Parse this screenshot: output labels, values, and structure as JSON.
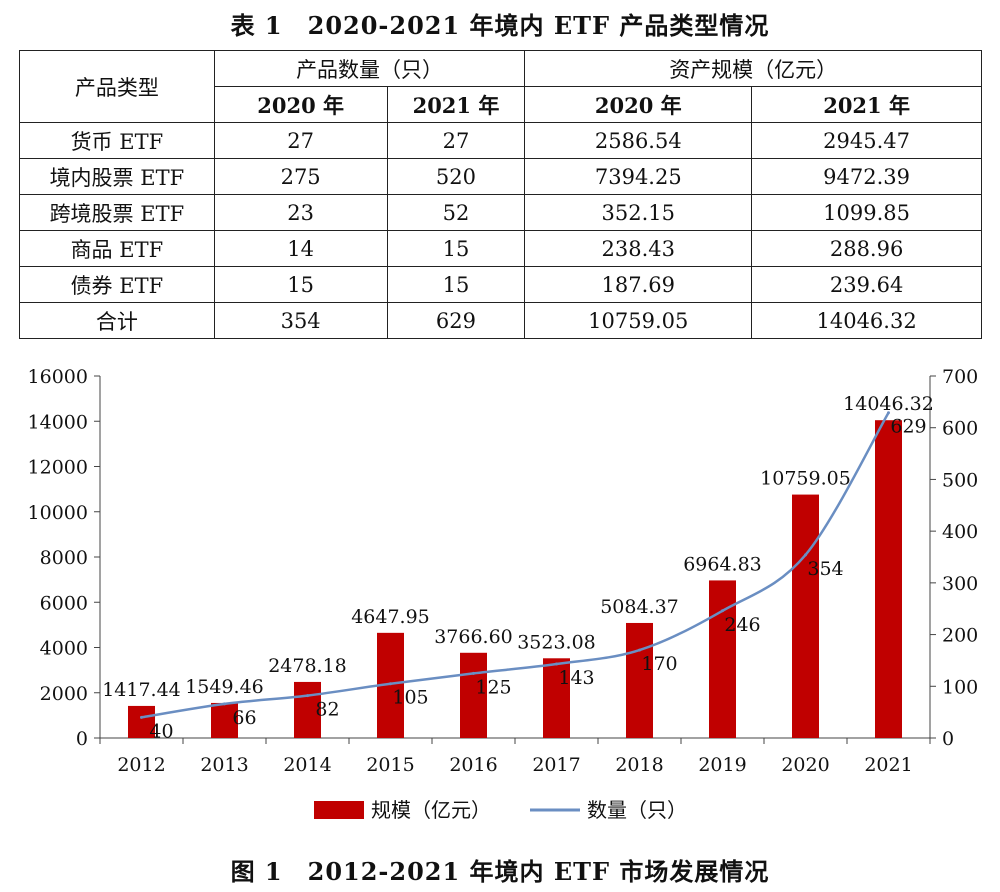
{
  "table": {
    "title": "表 1　2020-2021 年境内 ETF 产品类型情况",
    "col_type": "产品类型",
    "group_count": "产品数量（只）",
    "group_aum": "资产规模（亿元）",
    "years": [
      "2020 年",
      "2021 年",
      "2020 年",
      "2021 年"
    ],
    "rows": [
      {
        "type": "货币 ETF",
        "c2020": "27",
        "c2021": "27",
        "a2020": "2586.54",
        "a2021": "2945.47"
      },
      {
        "type": "境内股票 ETF",
        "c2020": "275",
        "c2021": "520",
        "a2020": "7394.25",
        "a2021": "9472.39"
      },
      {
        "type": "跨境股票 ETF",
        "c2020": "23",
        "c2021": "52",
        "a2020": "352.15",
        "a2021": "1099.85"
      },
      {
        "type": "商品 ETF",
        "c2020": "14",
        "c2021": "15",
        "a2020": "238.43",
        "a2021": "288.96"
      },
      {
        "type": "债券 ETF",
        "c2020": "15",
        "c2021": "15",
        "a2020": "187.69",
        "a2021": "239.64"
      },
      {
        "type": "合计",
        "c2020": "354",
        "c2021": "629",
        "a2020": "10759.05",
        "a2021": "14046.32"
      }
    ]
  },
  "figure": {
    "title": "图 1　2012-2021 年境内 ETF 市场发展情况"
  },
  "chart_data": {
    "type": "bar",
    "categories": [
      "2012",
      "2013",
      "2014",
      "2015",
      "2016",
      "2017",
      "2018",
      "2019",
      "2020",
      "2021"
    ],
    "series": [
      {
        "name": "规模（亿元）",
        "type": "bar",
        "axis": "left",
        "color": "#c00000",
        "values": [
          1417.44,
          1549.46,
          2478.18,
          4647.95,
          3766.6,
          3523.08,
          5084.37,
          6964.83,
          10759.05,
          14046.32
        ],
        "labels": [
          "1417.44",
          "1549.46",
          "2478.18",
          "4647.95",
          "3766.60",
          "3523.08",
          "5084.37",
          "6964.83",
          "10759.05",
          "14046.32"
        ]
      },
      {
        "name": "数量（只）",
        "type": "line",
        "axis": "right",
        "color": "#6a8ec2",
        "values": [
          40,
          66,
          82,
          105,
          125,
          143,
          170,
          246,
          354,
          629
        ],
        "labels": [
          "40",
          "66",
          "82",
          "105",
          "125",
          "143",
          "170",
          "246",
          "354",
          "629"
        ]
      }
    ],
    "y_left": {
      "min": 0,
      "max": 16000,
      "ticks": [
        "0",
        "2000",
        "4000",
        "6000",
        "8000",
        "10000",
        "12000",
        "14000",
        "16000"
      ]
    },
    "y_right": {
      "min": 0,
      "max": 700,
      "ticks": [
        "0",
        "100",
        "200",
        "300",
        "400",
        "500",
        "600",
        "700"
      ]
    },
    "grid": false,
    "legend_position": "bottom"
  }
}
